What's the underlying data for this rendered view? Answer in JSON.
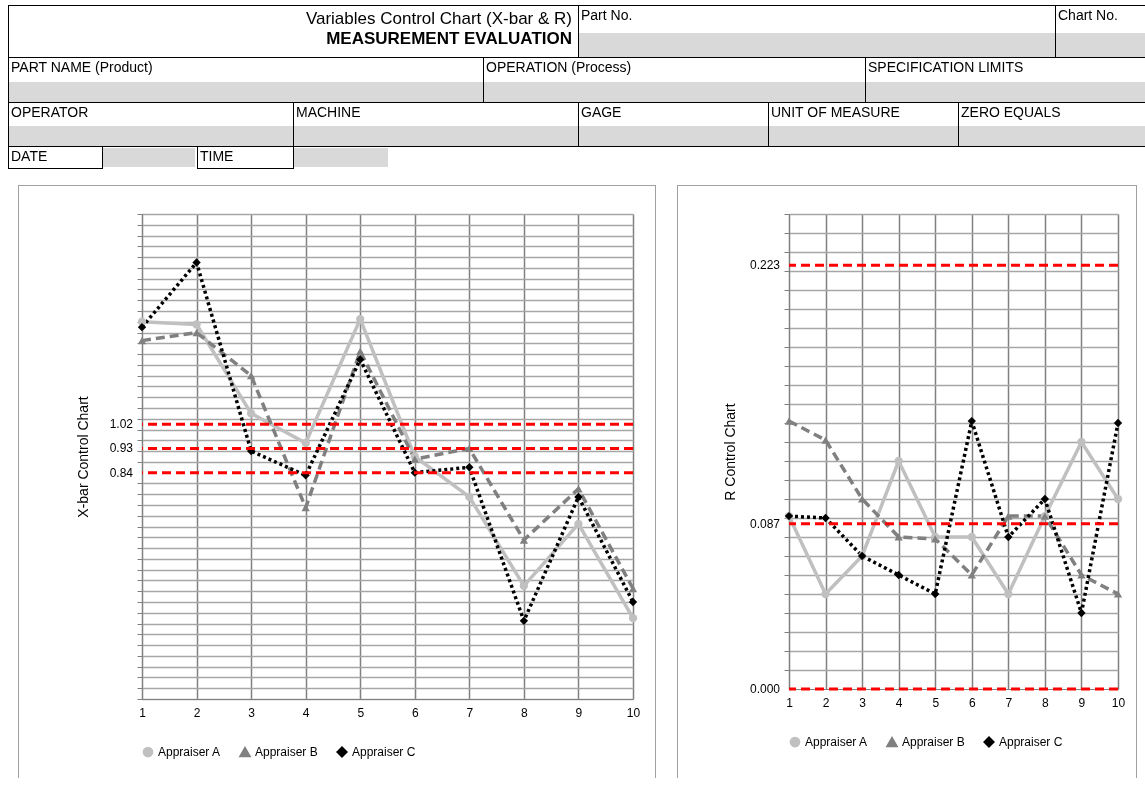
{
  "chart_data": [
    {
      "type": "other",
      "title": "Variables Control Chart (X-bar & R)",
      "subtitle": "MEASUREMENT EVALUATION",
      "annotations": [
        "Part No.",
        "Chart No.",
        "PART NAME (Product)",
        "OPERATION (Process)",
        "SPECIFICATION LIMITS",
        "OPERATOR",
        "MACHINE",
        "GAGE",
        "UNIT OF MEASURE",
        "ZERO EQUALS",
        "DATE",
        "TIME"
      ]
    },
    {
      "type": "line",
      "ylabel": "X-bar Control Chart",
      "categories": [
        "1",
        "2",
        "3",
        "4",
        "5",
        "6",
        "7",
        "8",
        "9",
        "10"
      ],
      "series": [
        {
          "name": "Appraiser A",
          "color": "#c0c0c0",
          "marker": "circle",
          "line_style": "solid",
          "values": [
            1.4,
            1.39,
            1.06,
            0.95,
            1.41,
            0.9,
            0.75,
            0.42,
            0.65,
            0.3
          ]
        },
        {
          "name": "Appraiser B",
          "color": "#808080",
          "marker": "triangle",
          "line_style": "dashed",
          "values": [
            1.33,
            1.36,
            1.2,
            0.71,
            1.29,
            0.89,
            0.93,
            0.59,
            0.78,
            0.41
          ]
        },
        {
          "name": "Appraiser C",
          "color": "#000000",
          "marker": "diamond",
          "line_style": "dotted",
          "values": [
            1.38,
            1.62,
            0.92,
            0.83,
            1.26,
            0.84,
            0.86,
            0.29,
            0.75,
            0.36
          ]
        }
      ],
      "ylim": [
        0,
        1.8
      ],
      "yticks": [
        {
          "value": 0,
          "label": null
        },
        {
          "value": 0.04,
          "label": null
        },
        {
          "value": 0.08,
          "label": null
        },
        {
          "value": 0.12,
          "label": null
        },
        {
          "value": 0.16,
          "label": null
        },
        {
          "value": 0.2,
          "label": null
        },
        {
          "value": 0.24,
          "label": null
        },
        {
          "value": 0.28,
          "label": null
        },
        {
          "value": 0.32,
          "label": null
        },
        {
          "value": 0.36,
          "label": null
        },
        {
          "value": 0.4,
          "label": null
        },
        {
          "value": 0.44,
          "label": null
        },
        {
          "value": 0.48,
          "label": null
        },
        {
          "value": 0.52,
          "label": null
        },
        {
          "value": 0.56,
          "label": null
        },
        {
          "value": 0.6,
          "label": null
        },
        {
          "value": 0.64,
          "label": null
        },
        {
          "value": 0.68,
          "label": null
        },
        {
          "value": 0.72,
          "label": null
        },
        {
          "value": 0.76,
          "label": null
        },
        {
          "value": 0.8,
          "label": null
        },
        {
          "value": 0.88,
          "label": null
        },
        {
          "value": 0.92,
          "label": null
        },
        {
          "value": 0.96,
          "label": null
        },
        {
          "value": 1,
          "label": null
        },
        {
          "value": 1.04,
          "label": null
        },
        {
          "value": 1.08,
          "label": null
        },
        {
          "value": 1.12,
          "label": null
        },
        {
          "value": 1.16,
          "label": null
        },
        {
          "value": 1.2,
          "label": null
        },
        {
          "value": 1.24,
          "label": null
        },
        {
          "value": 1.28,
          "label": null
        },
        {
          "value": 1.32,
          "label": null
        },
        {
          "value": 1.36,
          "label": null
        },
        {
          "value": 1.4,
          "label": null
        },
        {
          "value": 1.44,
          "label": null
        },
        {
          "value": 1.48,
          "label": null
        },
        {
          "value": 1.52,
          "label": null
        },
        {
          "value": 1.56,
          "label": null
        },
        {
          "value": 1.6,
          "label": null
        },
        {
          "value": 1.64,
          "label": null
        },
        {
          "value": 1.68,
          "label": null
        },
        {
          "value": 1.72,
          "label": null
        },
        {
          "value": 1.76,
          "label": null
        },
        {
          "value": 1.8,
          "label": null
        }
      ],
      "ref_lines": [
        {
          "axis": "y",
          "value": 1.02,
          "label": "1.02",
          "color": "#ff0000",
          "line_style": "dashed"
        },
        {
          "axis": "y",
          "value": 0.93,
          "label": "0.93",
          "color": "#ff0000",
          "line_style": "dashed"
        },
        {
          "axis": "y",
          "value": 0.84,
          "label": "0.84",
          "color": "#ff0000",
          "line_style": "dashed"
        }
      ],
      "grid": true,
      "legend": "bottom"
    },
    {
      "type": "line",
      "ylabel": "R Control Chart",
      "categories": [
        "1",
        "2",
        "3",
        "4",
        "5",
        "6",
        "7",
        "8",
        "9",
        "10"
      ],
      "series": [
        {
          "name": "Appraiser A",
          "color": "#c0c0c0",
          "marker": "circle",
          "line_style": "solid",
          "values": [
            0.091,
            0.05,
            0.07,
            0.12,
            0.08,
            0.08,
            0.05,
            0.091,
            0.13,
            0.1
          ]
        },
        {
          "name": "Appraiser B",
          "color": "#808080",
          "marker": "triangle",
          "line_style": "dashed",
          "values": [
            0.141,
            0.131,
            0.1,
            0.08,
            0.079,
            0.06,
            0.091,
            0.091,
            0.06,
            0.05
          ]
        },
        {
          "name": "Appraiser C",
          "color": "#000000",
          "marker": "diamond",
          "line_style": "dotted",
          "values": [
            0.091,
            0.09,
            0.07,
            0.06,
            0.05,
            0.141,
            0.08,
            0.1,
            0.04,
            0.14
          ]
        }
      ],
      "ylim": [
        0,
        0.25
      ],
      "yticks": [
        {
          "value": 0.01,
          "label": null
        },
        {
          "value": 0.02,
          "label": null
        },
        {
          "value": 0.03,
          "label": null
        },
        {
          "value": 0.04,
          "label": null
        },
        {
          "value": 0.05,
          "label": null
        },
        {
          "value": 0.06,
          "label": null
        },
        {
          "value": 0.07,
          "label": null
        },
        {
          "value": 0.08,
          "label": null
        },
        {
          "value": 0.09,
          "label": null
        },
        {
          "value": 0.1,
          "label": null
        },
        {
          "value": 0.11,
          "label": null
        },
        {
          "value": 0.12,
          "label": null
        },
        {
          "value": 0.13,
          "label": null
        },
        {
          "value": 0.14,
          "label": null
        },
        {
          "value": 0.15,
          "label": null
        },
        {
          "value": 0.16,
          "label": null
        },
        {
          "value": 0.17,
          "label": null
        },
        {
          "value": 0.18,
          "label": null
        },
        {
          "value": 0.19,
          "label": null
        },
        {
          "value": 0.2,
          "label": null
        },
        {
          "value": 0.21,
          "label": null
        },
        {
          "value": 0.22,
          "label": null
        },
        {
          "value": 0.23,
          "label": null
        },
        {
          "value": 0.24,
          "label": null
        },
        {
          "value": 0.25,
          "label": null
        }
      ],
      "ref_lines": [
        {
          "axis": "y",
          "value": 0.223,
          "label": "0.223",
          "color": "#ff0000",
          "line_style": "dashed"
        },
        {
          "axis": "y",
          "value": 0.087,
          "label": "0.087",
          "color": "#ff0000",
          "line_style": "dashed"
        },
        {
          "axis": "y",
          "value": 0,
          "label": "0.000",
          "color": "#ff0000",
          "line_style": "dashed"
        }
      ],
      "grid": true,
      "legend": "bottom"
    }
  ]
}
